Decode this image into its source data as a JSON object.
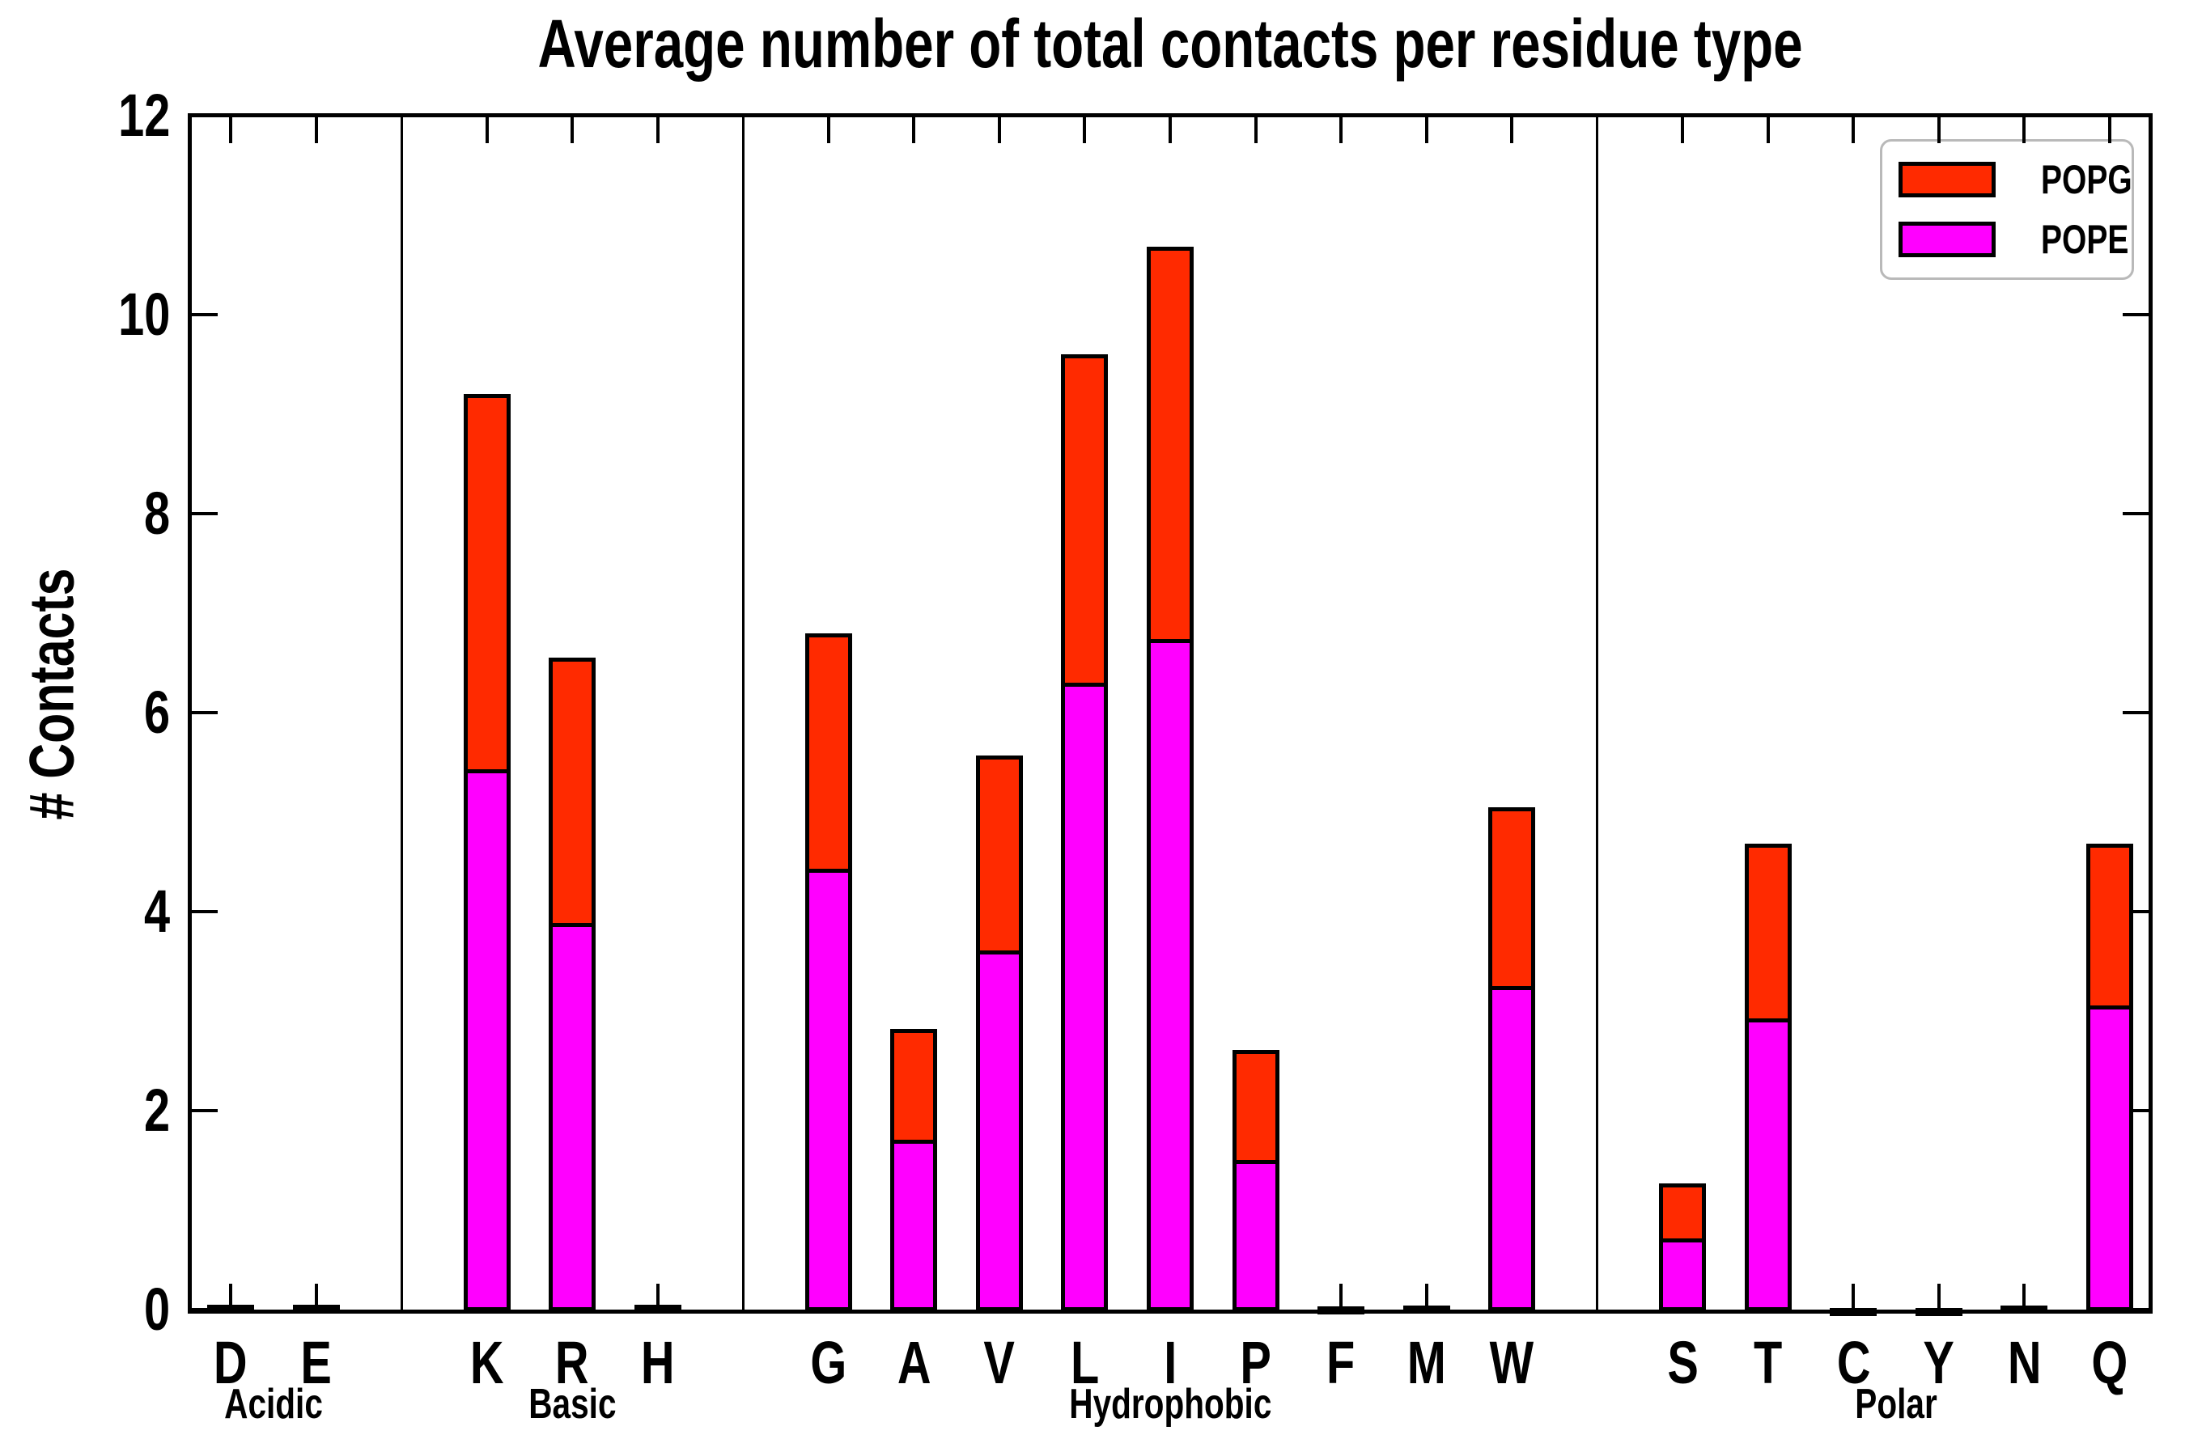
{
  "title": "Average number of total contacts per residue type",
  "ylabel": "# Contacts",
  "legend": [
    {
      "label": "POPG",
      "color": "#ff2a00"
    },
    {
      "label": "POPE",
      "color": "#ff00ff"
    }
  ],
  "colors": {
    "popg": "#ff2a00",
    "pope": "#ff00ff",
    "axis": "#000000",
    "legend_border": "#b9b9b9",
    "background": "#ffffff"
  },
  "chart_data": {
    "type": "bar",
    "stacked": true,
    "title": "Average number of total contacts per residue type",
    "xlabel": "",
    "ylabel": "# Contacts",
    "ylim": [
      0,
      12
    ],
    "yticks": [
      0,
      2,
      4,
      6,
      8,
      10,
      12
    ],
    "grid": false,
    "legend_position": "upper right",
    "categories": [
      "D",
      "E",
      "K",
      "R",
      "H",
      "G",
      "A",
      "V",
      "L",
      "I",
      "P",
      "F",
      "M",
      "W",
      "S",
      "T",
      "C",
      "Y",
      "N",
      "Q"
    ],
    "groups": [
      {
        "label": "Acidic",
        "categories": [
          "D",
          "E"
        ]
      },
      {
        "label": "Basic",
        "categories": [
          "K",
          "R",
          "H"
        ]
      },
      {
        "label": "Hydrophobic",
        "categories": [
          "G",
          "A",
          "V",
          "L",
          "I",
          "P",
          "F",
          "M",
          "W"
        ]
      },
      {
        "label": "Polar",
        "categories": [
          "S",
          "T",
          "C",
          "Y",
          "N",
          "Q"
        ]
      }
    ],
    "series": [
      {
        "name": "POPE",
        "color": "#ff00ff",
        "values": [
          0.03,
          0.03,
          5.45,
          3.9,
          0.03,
          4.45,
          1.72,
          3.63,
          6.32,
          6.76,
          1.52,
          0.02,
          0.02,
          3.27,
          0.73,
          2.94,
          0.01,
          0.01,
          0.02,
          3.07
        ]
      },
      {
        "name": "POPG",
        "color": "#ff2a00",
        "values": [
          0.02,
          0.02,
          3.75,
          2.65,
          0.02,
          2.35,
          1.1,
          1.94,
          3.28,
          3.92,
          1.09,
          0.01,
          0.02,
          1.78,
          0.54,
          1.74,
          0.01,
          0.01,
          0.02,
          1.61
        ]
      }
    ]
  }
}
